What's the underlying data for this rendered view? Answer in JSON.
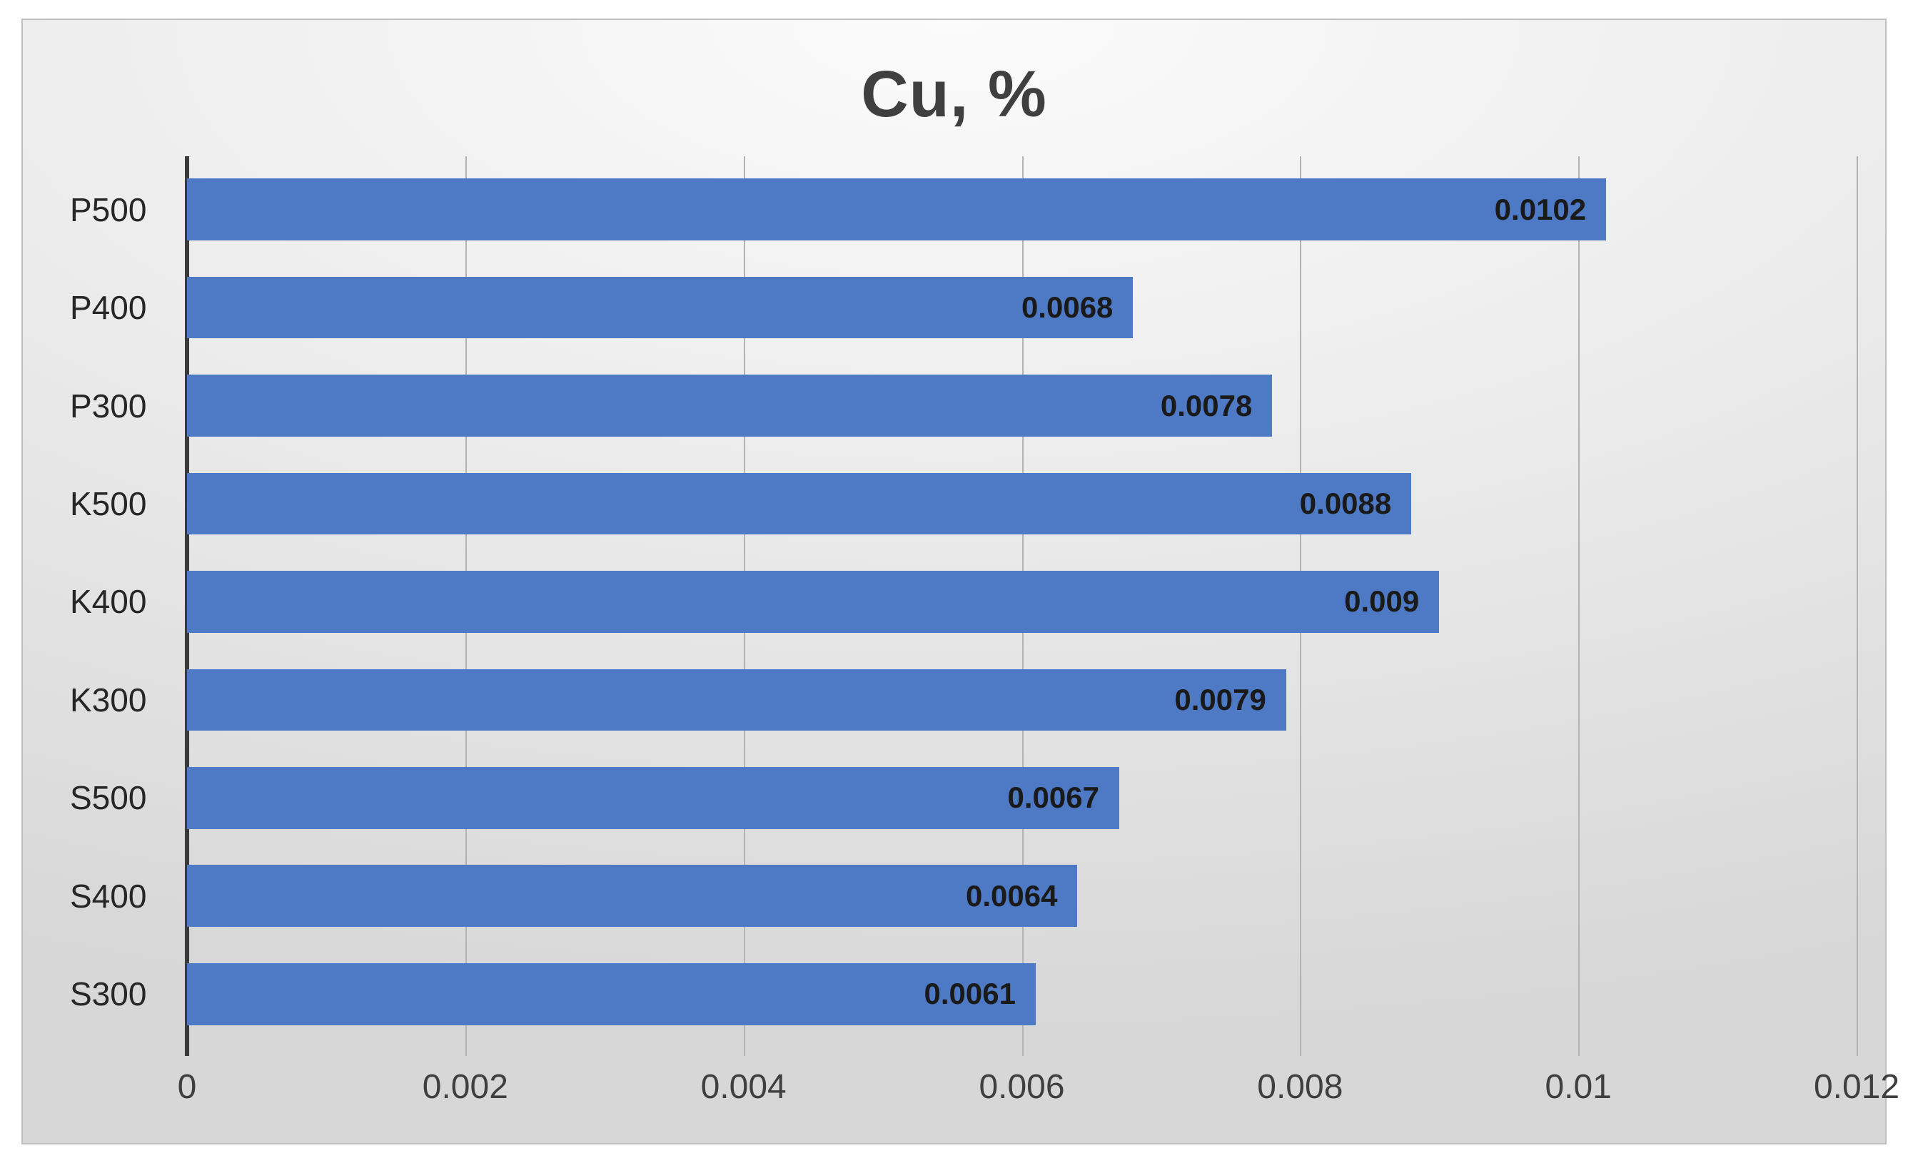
{
  "chart_data": {
    "type": "bar",
    "orientation": "horizontal",
    "title": "Cu, %",
    "categories": [
      "P500",
      "P400",
      "P300",
      "K500",
      "K400",
      "K300",
      "S500",
      "S400",
      "S300"
    ],
    "values": [
      0.0102,
      0.0068,
      0.0078,
      0.0088,
      0.009,
      0.0079,
      0.0067,
      0.0064,
      0.0061
    ],
    "value_labels": [
      "0.0102",
      "0.0068",
      "0.0078",
      "0.0088",
      "0.009",
      "0.0079",
      "0.0067",
      "0.0064",
      "0.0061"
    ],
    "xlabel": "",
    "ylabel": "",
    "xlim": [
      0,
      0.012
    ],
    "x_ticks": [
      0,
      0.002,
      0.004,
      0.006,
      0.008,
      0.01,
      0.012
    ],
    "x_tick_labels": [
      "0",
      "0.002",
      "0.004",
      "0.006",
      "0.008",
      "0.01",
      "0.012"
    ],
    "grid": true,
    "legend": false,
    "bar_color": "#4e79c5",
    "value_label_color": "#1a1a1a",
    "title_color": "#3f3f3f"
  }
}
